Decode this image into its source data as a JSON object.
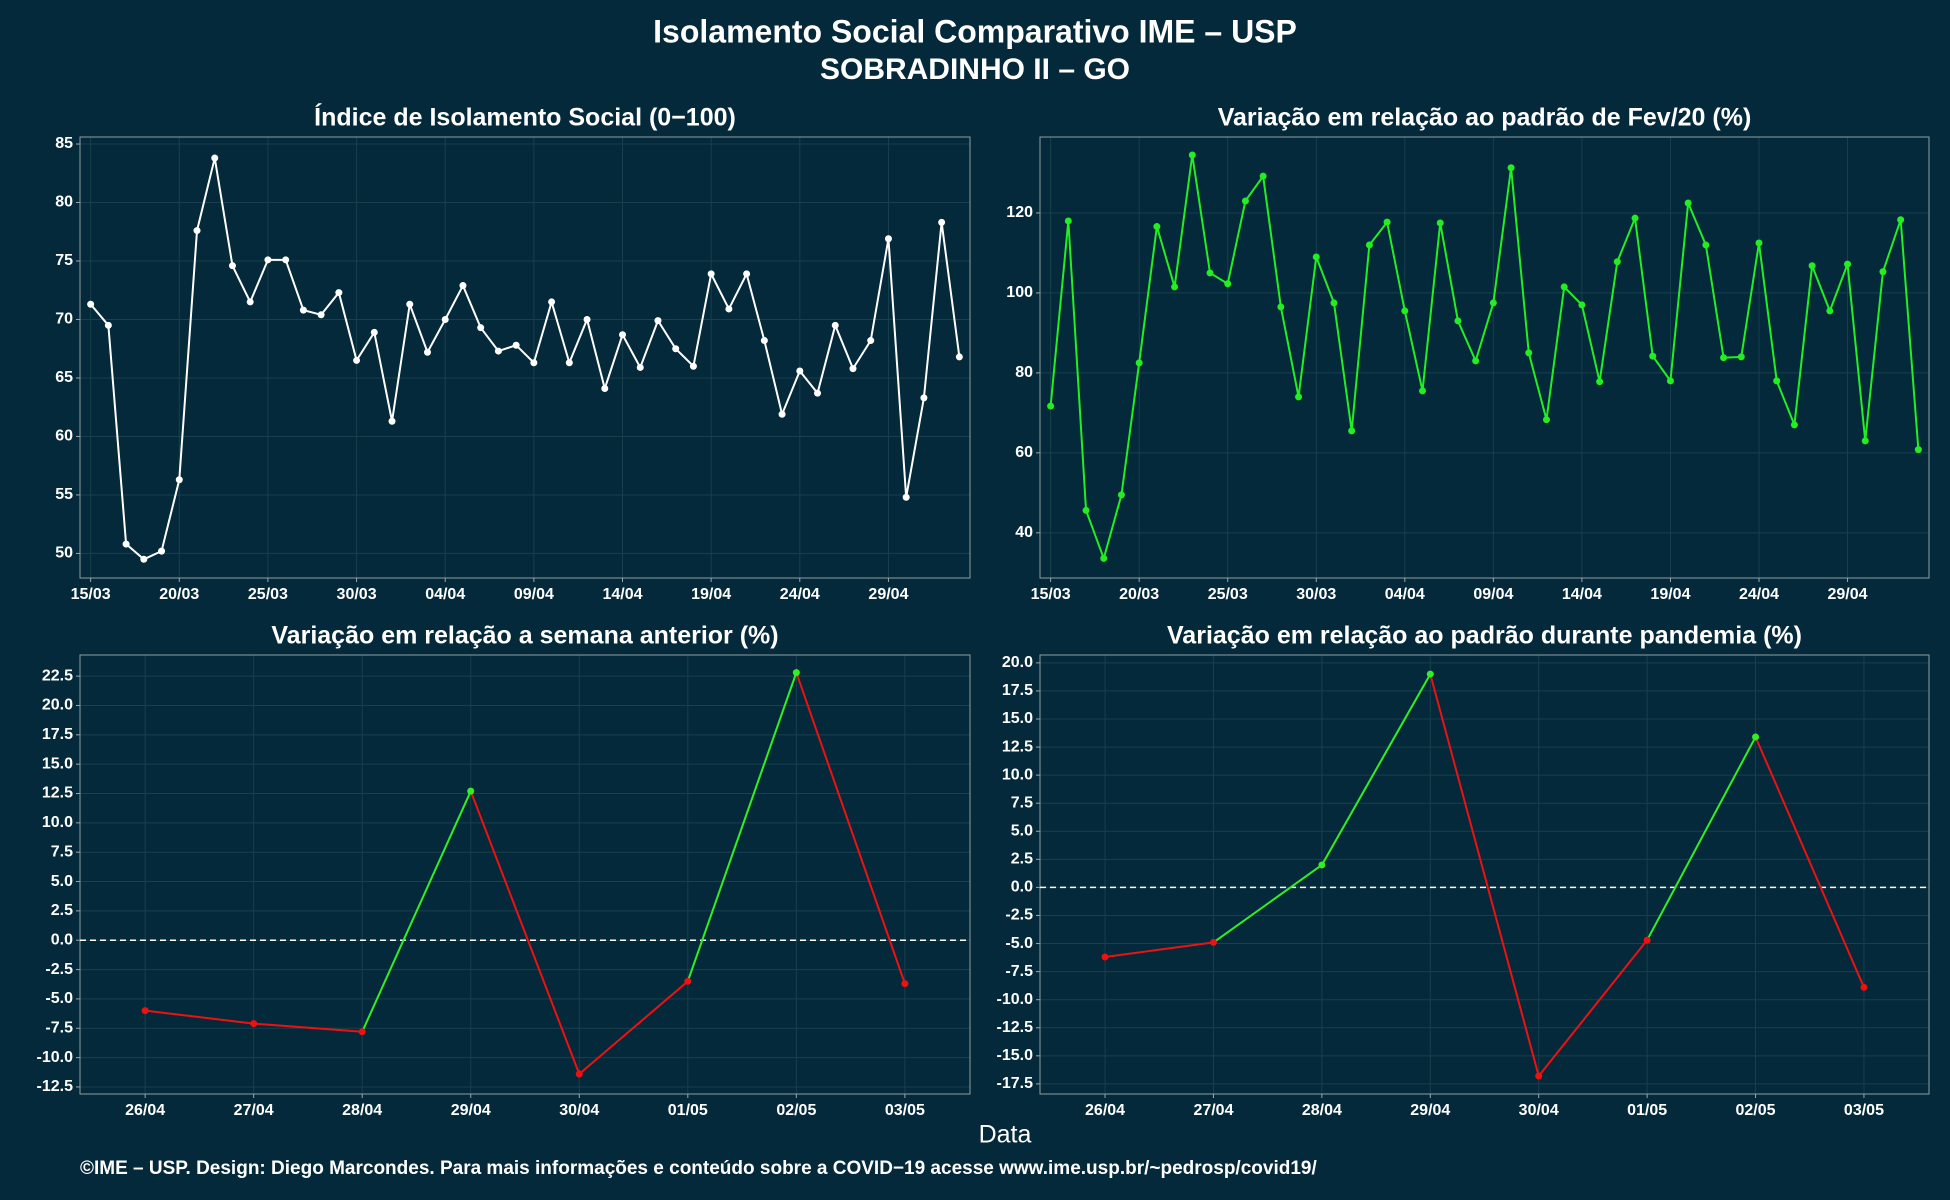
{
  "title": "Isolamento Social Comparativo IME – USP",
  "subtitle": "SOBRADINHO II – GO",
  "x_label": "Data",
  "footer": "©IME – USP. Design: Diego Marcondes. Para mais informações e conteúdo sobre a COVID−19 acesse www.ime.usp.br/~pedrosp/covid19/",
  "chart_data": [
    {
      "type": "line",
      "title": "Índice de Isolamento Social (0−100)",
      "categories": [
        "15/03",
        null,
        null,
        null,
        null,
        "20/03",
        null,
        null,
        null,
        null,
        "25/03",
        null,
        null,
        null,
        null,
        "30/03",
        null,
        null,
        null,
        null,
        "04/04",
        null,
        null,
        null,
        null,
        "09/04",
        null,
        null,
        null,
        null,
        "14/04",
        null,
        null,
        null,
        null,
        "19/04",
        null,
        null,
        null,
        null,
        "24/04",
        null,
        null,
        null,
        null,
        "29/04",
        null,
        null,
        null,
        null
      ],
      "values": [
        71.3,
        69.5,
        50.8,
        49.5,
        50.2,
        56.3,
        77.6,
        83.8,
        74.6,
        71.5,
        75.1,
        75.1,
        70.8,
        70.4,
        72.3,
        66.5,
        68.9,
        61.3,
        71.3,
        67.2,
        70.0,
        72.9,
        69.3,
        67.3,
        67.8,
        66.3,
        71.5,
        66.3,
        70.0,
        64.1,
        68.7,
        65.9,
        69.9,
        67.5,
        66.0,
        73.9,
        70.9,
        73.9,
        68.2,
        61.9,
        65.6,
        63.7,
        69.5,
        65.8,
        68.2,
        76.9,
        54.8,
        63.3,
        78.3,
        66.8
      ],
      "color": "#ffffff",
      "ylim": [
        47.9,
        85.6
      ],
      "yticks": [
        50,
        55,
        60,
        65,
        70,
        75,
        80,
        85
      ],
      "grid": true
    },
    {
      "type": "line",
      "title": "Variação em relação ao padrão de Fev/20 (%)",
      "categories": [
        "15/03",
        null,
        null,
        null,
        null,
        "20/03",
        null,
        null,
        null,
        null,
        "25/03",
        null,
        null,
        null,
        null,
        "30/03",
        null,
        null,
        null,
        null,
        "04/04",
        null,
        null,
        null,
        null,
        "09/04",
        null,
        null,
        null,
        null,
        "14/04",
        null,
        null,
        null,
        null,
        "19/04",
        null,
        null,
        null,
        null,
        "24/04",
        null,
        null,
        null,
        null,
        "29/04",
        null,
        null,
        null,
        null
      ],
      "values": [
        71.7,
        118,
        45.6,
        33.6,
        49.5,
        82.5,
        116.6,
        101.5,
        134.5,
        105,
        102.3,
        123,
        129.2,
        96.5,
        74,
        109,
        97.5,
        65.5,
        112,
        117.7,
        95.5,
        75.5,
        117.5,
        93,
        83,
        97.5,
        131.3,
        85,
        68.3,
        101.5,
        97,
        77.8,
        107.8,
        118.7,
        84.2,
        78,
        122.5,
        112,
        83.8,
        84,
        112.5,
        78,
        67,
        106.8,
        95.5,
        107.2,
        63,
        105.3,
        118.3,
        60.8
      ],
      "color": "#22ee22",
      "ylim": [
        28.7,
        139
      ],
      "yticks": [
        40,
        60,
        80,
        100,
        120
      ],
      "grid": true
    },
    {
      "type": "line",
      "title": "Variação em relação a semana anterior (%)",
      "categories": [
        "26/04",
        "27/04",
        "28/04",
        "29/04",
        "30/04",
        "01/05",
        "02/05",
        "03/05"
      ],
      "values": [
        -6.0,
        -7.1,
        -7.8,
        12.7,
        -11.4,
        -3.5,
        22.8,
        -3.7
      ],
      "point_colors": [
        "#ee1111",
        "#ee1111",
        "#ee1111",
        "#33ee22",
        "#ee1111",
        "#ee1111",
        "#33ee22",
        "#ee1111"
      ],
      "reference_line": 0,
      "ylim": [
        -13.1,
        24.3
      ],
      "yticks": [
        -12.5,
        {
          "value": -10,
          "label": "-10.0"
        },
        -7.5,
        {
          "value": -5,
          "label": "-5.0"
        },
        -2.5,
        {
          "value": 0,
          "label": "0.0"
        },
        2.5,
        {
          "value": 5,
          "label": "5.0"
        },
        7.5,
        {
          "value": 10,
          "label": "10.0"
        },
        12.5,
        {
          "value": 15,
          "label": "15.0"
        },
        17.5,
        {
          "value": 20,
          "label": "20.0"
        },
        22.5
      ],
      "grid": true
    },
    {
      "type": "line",
      "title": "Variação em relação ao padrão durante pandemia (%)",
      "categories": [
        "26/04",
        "27/04",
        "28/04",
        "29/04",
        "30/04",
        "01/05",
        "02/05",
        "03/05"
      ],
      "values": [
        -6.2,
        -4.9,
        2.0,
        19.0,
        -16.8,
        -4.7,
        13.4,
        -8.9
      ],
      "point_colors": [
        "#ee1111",
        "#ee1111",
        "#33ee22",
        "#33ee22",
        "#ee1111",
        "#ee1111",
        "#33ee22",
        "#ee1111"
      ],
      "reference_line": 0,
      "ylim": [
        -18.4,
        20.7
      ],
      "yticks": [
        -17.5,
        {
          "value": -15,
          "label": "-15.0"
        },
        -12.5,
        {
          "value": -10,
          "label": "-10.0"
        },
        -7.5,
        {
          "value": -5,
          "label": "-5.0"
        },
        -2.5,
        {
          "value": 0,
          "label": "0.0"
        },
        2.5,
        {
          "value": 5,
          "label": "5.0"
        },
        7.5,
        {
          "value": 10,
          "label": "10.0"
        },
        12.5,
        {
          "value": 15,
          "label": "15.0"
        },
        17.5,
        {
          "value": 20,
          "label": "20.0"
        }
      ],
      "grid": true
    }
  ]
}
